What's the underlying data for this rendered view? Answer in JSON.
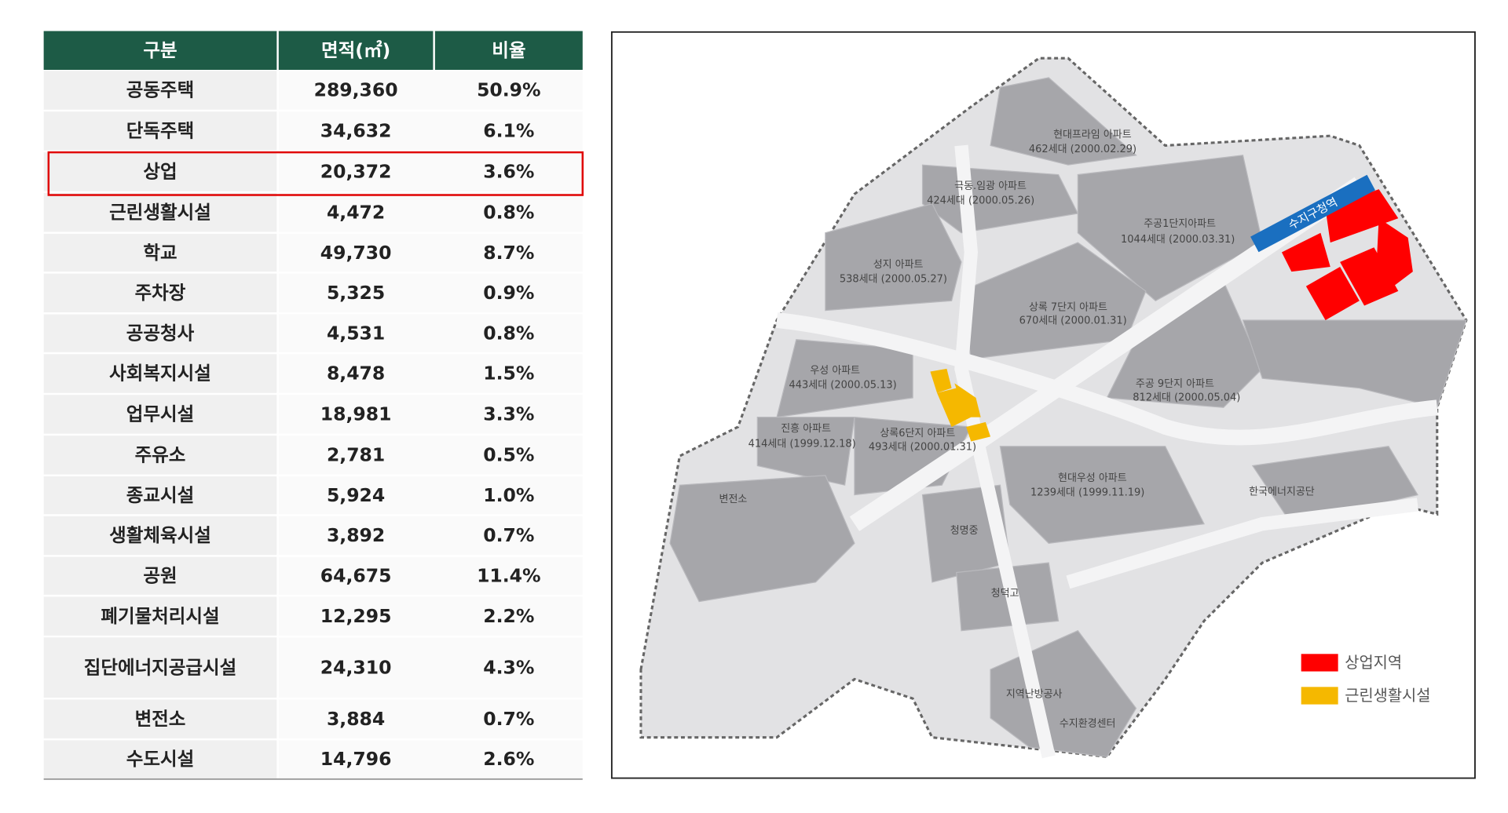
{
  "table": {
    "headers": [
      "구분",
      "면적(㎡)",
      "비율"
    ],
    "rows": [
      [
        "공동주택",
        "289,360",
        "50.9%"
      ],
      [
        "단독주택",
        "34,632",
        "6.1%"
      ],
      [
        "상업",
        "20,372",
        "3.6%"
      ],
      [
        "근린생활시설",
        "4,472",
        "0.8%"
      ],
      [
        "학교",
        "49,730",
        "8.7%"
      ],
      [
        "주차장",
        "5,325",
        "0.9%"
      ],
      [
        "공공청사",
        "4,531",
        "0.8%"
      ],
      [
        "사회복지시설",
        "8,478",
        "1.5%"
      ],
      [
        "업무시설",
        "18,981",
        "3.3%"
      ],
      [
        "주유소",
        "2,781",
        "0.5%"
      ],
      [
        "종교시설",
        "5,924",
        "1.0%"
      ],
      [
        "생활체육시설",
        "3,892",
        "0.7%"
      ],
      [
        "공원",
        "64,675",
        "11.4%"
      ],
      [
        "폐기물처리시설",
        "12,295",
        "2.2%"
      ],
      [
        "집단에너지공급시설",
        "24,310",
        "4.3%"
      ],
      [
        "변전소",
        "3,884",
        "0.7%"
      ],
      [
        "수도시설",
        "14,796",
        "2.6%"
      ]
    ]
  },
  "map": {
    "station": "수지구청역",
    "labels": [
      "현대프라임 아파트",
      "462세대 (2000.02.29)",
      "극동.임광 아파트",
      "424세대 (2000.05.26)",
      "주공1단지아파트",
      "1044세대 (2000.03.31)",
      "성지 아파트",
      "538세대 (2000.05.27)",
      "상록 7단지 아파트",
      "670세대 (2000.01.31)",
      "우성 아파트",
      "443세대 (2000.05.13)",
      "주공 9단지 아파트",
      "812세대 (2000.05.04)",
      "진흥 아파트",
      "414세대 (1999.12.18)",
      "상록6단지 아파트",
      "493세대 (2000.01.31)",
      "현대우성 아파트",
      "1239세대 (1999.11.19)",
      "변전소",
      "한국에너지공단",
      "청명중",
      "청덕고",
      "지역난방공사",
      "수지환경센터"
    ],
    "legend": [
      "상업지역",
      "근린생활시설"
    ]
  }
}
